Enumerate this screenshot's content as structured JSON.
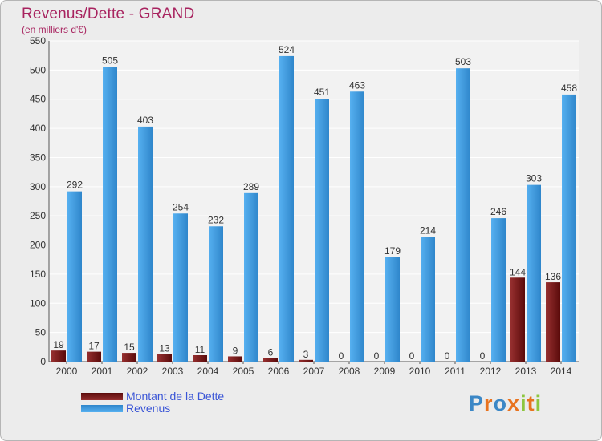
{
  "title": "Revenus/Dette - GRAND",
  "subtitle": "(en milliers d'€)",
  "logo": {
    "text": "Proxiti",
    "colors": [
      "#3b87c6",
      "#e8731f",
      "#3b87c6",
      "#e8731f",
      "#8dc63f",
      "#e8731f",
      "#8dc63f"
    ]
  },
  "chart_data": {
    "type": "bar",
    "categories": [
      "2000",
      "2001",
      "2002",
      "2003",
      "2004",
      "2005",
      "2006",
      "2007",
      "2008",
      "2009",
      "2010",
      "2011",
      "2012",
      "2013",
      "2014"
    ],
    "series": [
      {
        "name": "Montant de la Dette",
        "color": "#7d1414",
        "values": [
          19,
          17,
          15,
          13,
          11,
          9,
          6,
          3,
          0,
          0,
          0,
          0,
          0,
          144,
          136
        ]
      },
      {
        "name": "Revenus",
        "color": "#3d9be0",
        "values": [
          292,
          505,
          403,
          254,
          232,
          289,
          524,
          451,
          463,
          179,
          214,
          503,
          246,
          303,
          458
        ]
      }
    ],
    "ylim": [
      0,
      550
    ],
    "yticks": [
      0,
      50,
      100,
      150,
      200,
      250,
      300,
      350,
      400,
      450,
      500,
      550
    ],
    "grid": true,
    "legend_position": "bottom-left"
  }
}
